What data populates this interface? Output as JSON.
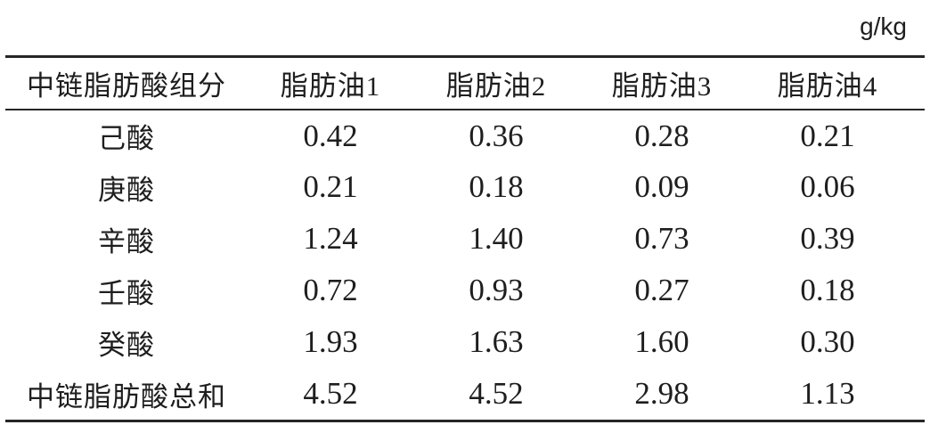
{
  "unit_label": "g/kg",
  "table": {
    "columns": [
      "中链脂肪酸组分",
      "脂肪油1",
      "脂肪油2",
      "脂肪油3",
      "脂肪油4"
    ],
    "rows": [
      {
        "label": "己酸",
        "values": [
          "0.42",
          "0.36",
          "0.28",
          "0.21"
        ]
      },
      {
        "label": "庚酸",
        "values": [
          "0.21",
          "0.18",
          "0.09",
          "0.06"
        ]
      },
      {
        "label": "辛酸",
        "values": [
          "1.24",
          "1.40",
          "0.73",
          "0.39"
        ]
      },
      {
        "label": "壬酸",
        "values": [
          "0.72",
          "0.93",
          "0.27",
          "0.18"
        ]
      },
      {
        "label": "癸酸",
        "values": [
          "1.93",
          "1.63",
          "1.60",
          "0.30"
        ]
      },
      {
        "label": "中链脂肪酸总和",
        "values": [
          "4.52",
          "4.52",
          "2.98",
          "1.13"
        ]
      }
    ]
  },
  "chart_data": {
    "type": "table",
    "title": "",
    "unit": "g/kg",
    "categories": [
      "己酸",
      "庚酸",
      "辛酸",
      "壬酸",
      "癸酸",
      "中链脂肪酸总和"
    ],
    "series": [
      {
        "name": "脂肪油1",
        "values": [
          0.42,
          0.21,
          1.24,
          0.72,
          1.93,
          4.52
        ]
      },
      {
        "name": "脂肪油2",
        "values": [
          0.36,
          0.18,
          1.4,
          0.93,
          1.63,
          4.52
        ]
      },
      {
        "name": "脂肪油3",
        "values": [
          0.28,
          0.09,
          0.73,
          0.27,
          1.6,
          2.98
        ]
      },
      {
        "name": "脂肪油4",
        "values": [
          0.21,
          0.06,
          0.39,
          0.18,
          0.3,
          1.13
        ]
      }
    ]
  },
  "colors": {
    "text": "#1e1e1e",
    "rule": "#262626",
    "background": "#ffffff"
  }
}
